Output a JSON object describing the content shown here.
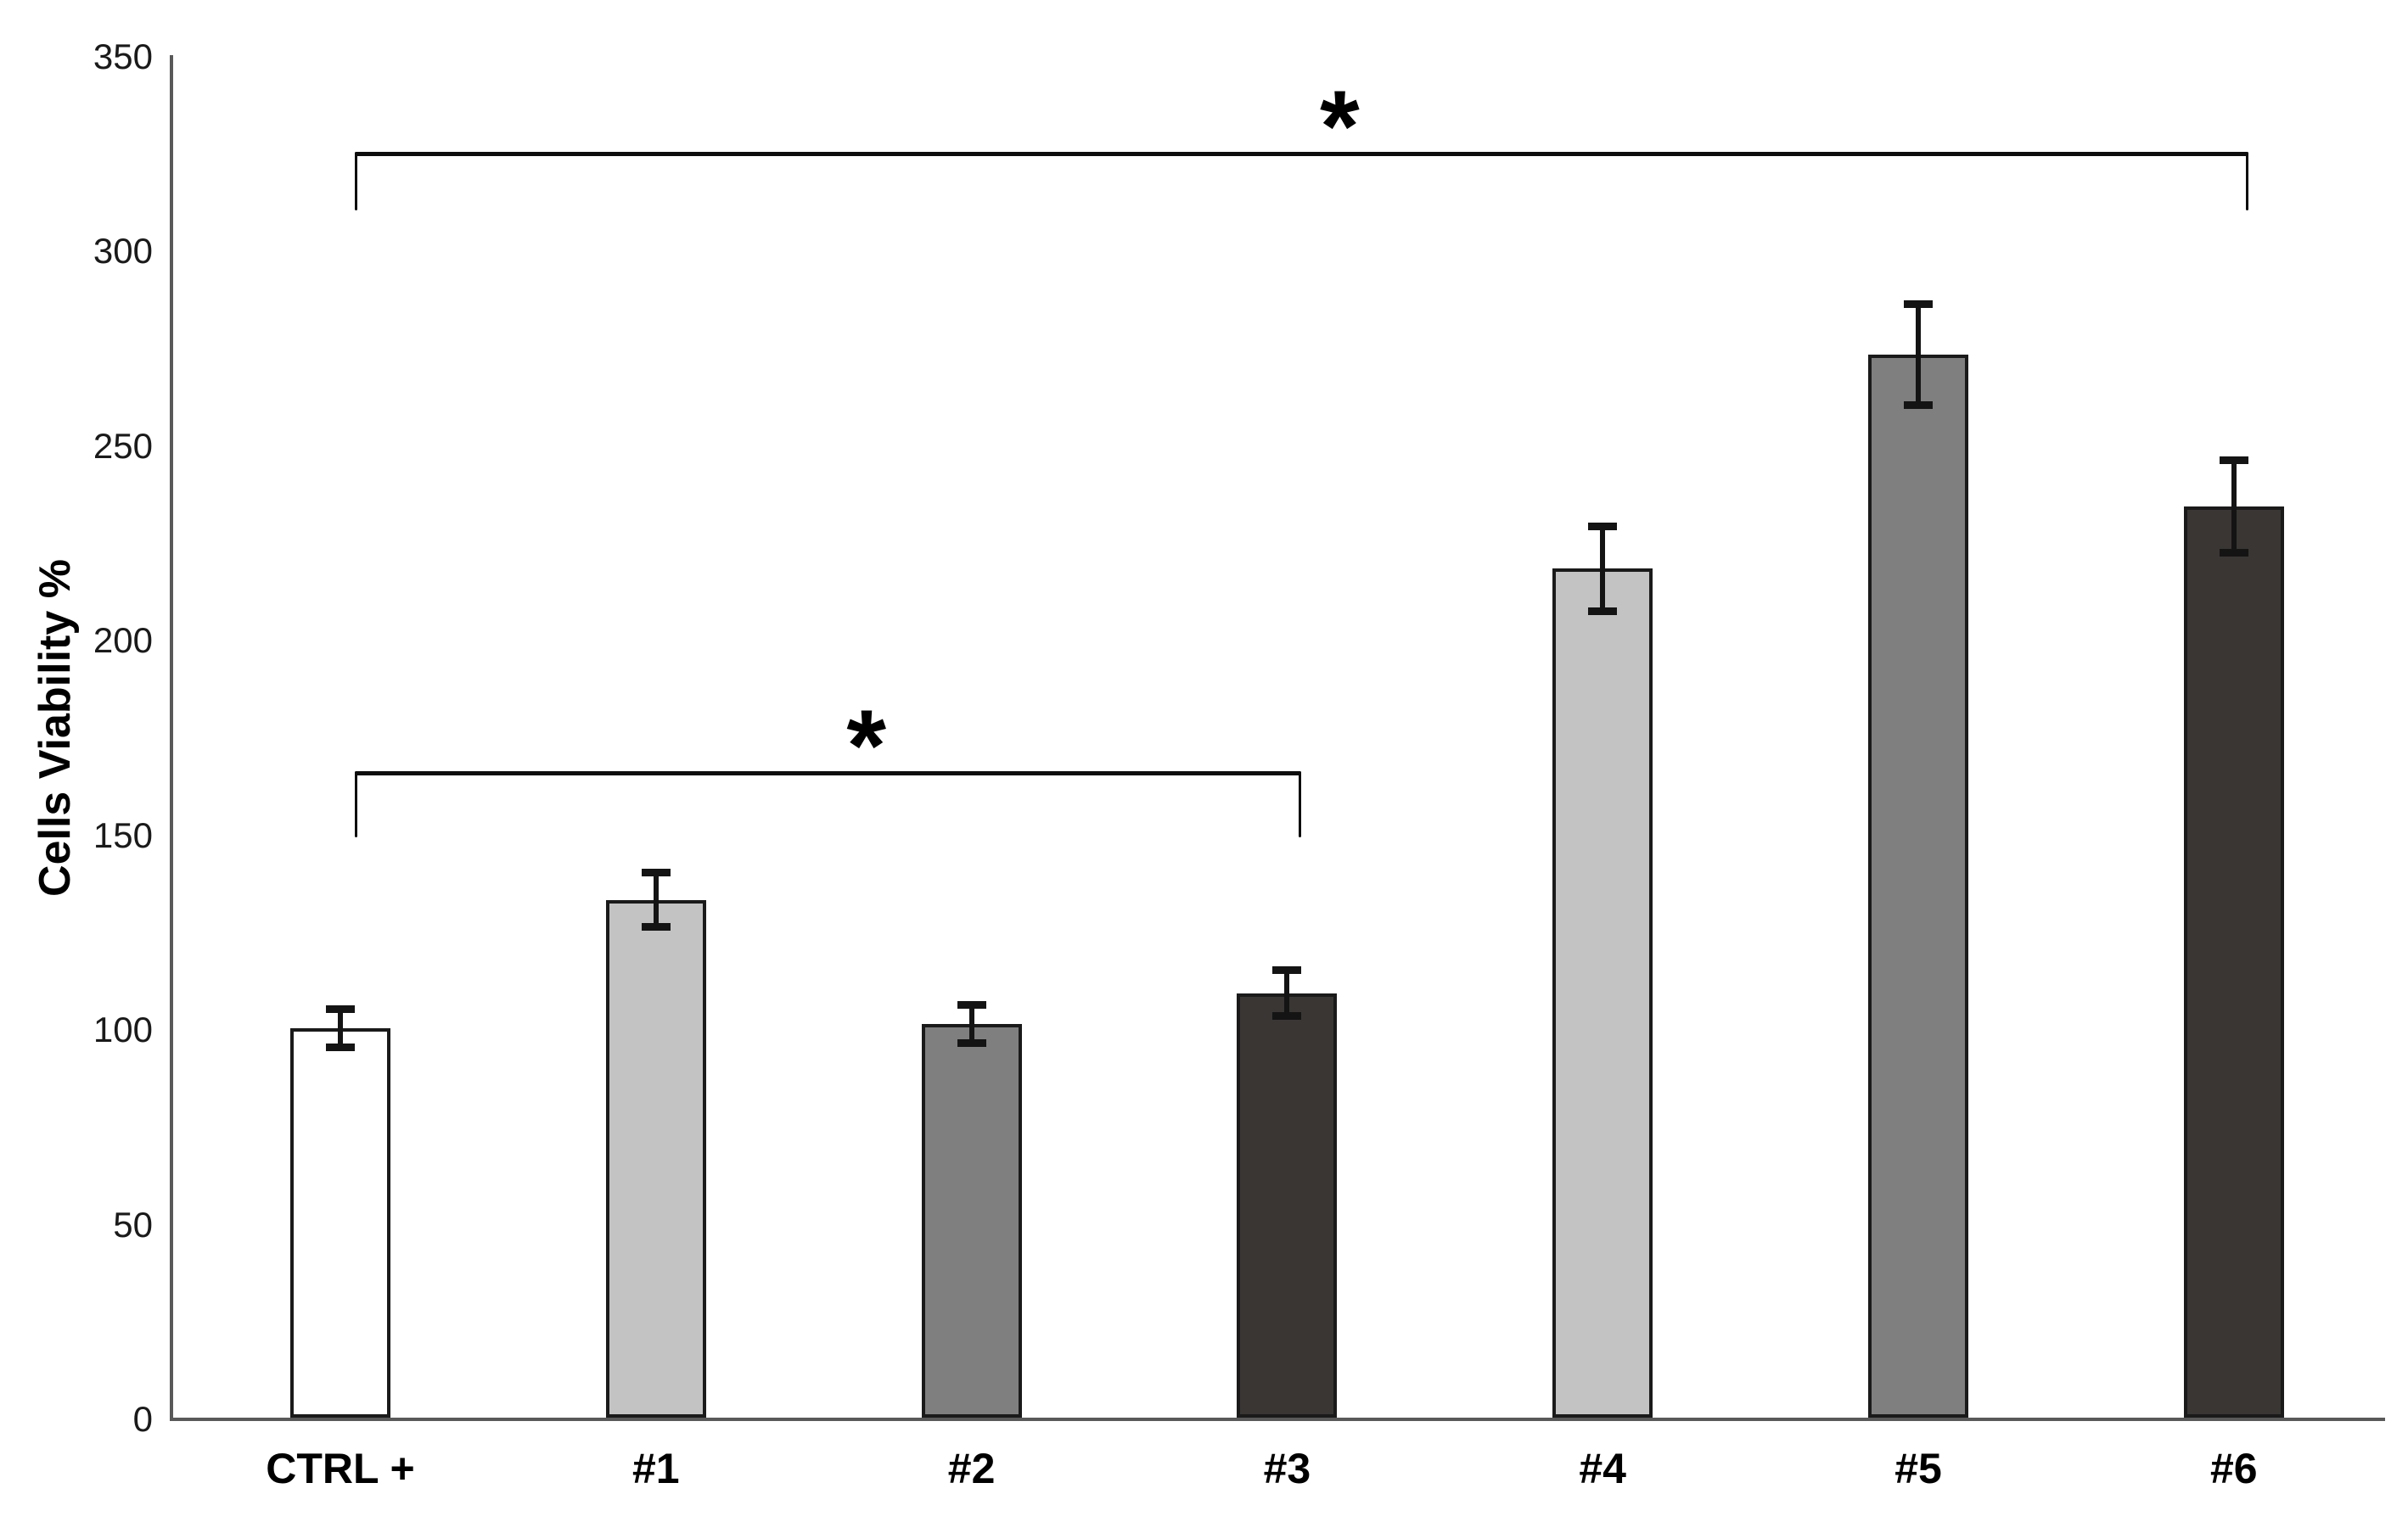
{
  "chart_data": {
    "type": "bar",
    "title": "",
    "ylabel": "Cells Viability %",
    "xlabel": "",
    "ylim": [
      0,
      350
    ],
    "yticks": [
      0,
      50,
      100,
      150,
      200,
      250,
      300,
      350
    ],
    "grid": false,
    "legend": false,
    "categories": [
      "CTRL +",
      "#1",
      "#2",
      "#3",
      "#4",
      "#5",
      "#6"
    ],
    "values": [
      100,
      133,
      101,
      109,
      218,
      273,
      234
    ],
    "errors": [
      5,
      7,
      5,
      6,
      11,
      13,
      12
    ],
    "bar_fills": [
      "#ffffff",
      "#c3c3c3",
      "#7f7f7f",
      "#393634",
      "#c3c3c3",
      "#7f7f7f",
      "#393634"
    ],
    "bar_border_color": "#1a1a1a",
    "axis_color": "#595959",
    "error_bar_color": "#141414",
    "significance_brackets": [
      {
        "from": "CTRL +",
        "to": "#3",
        "label": "*",
        "y_value": 166,
        "drop": 17
      },
      {
        "from": "CTRL +",
        "to": "#6",
        "label": "*",
        "y_value": 325,
        "drop": 15
      }
    ]
  }
}
